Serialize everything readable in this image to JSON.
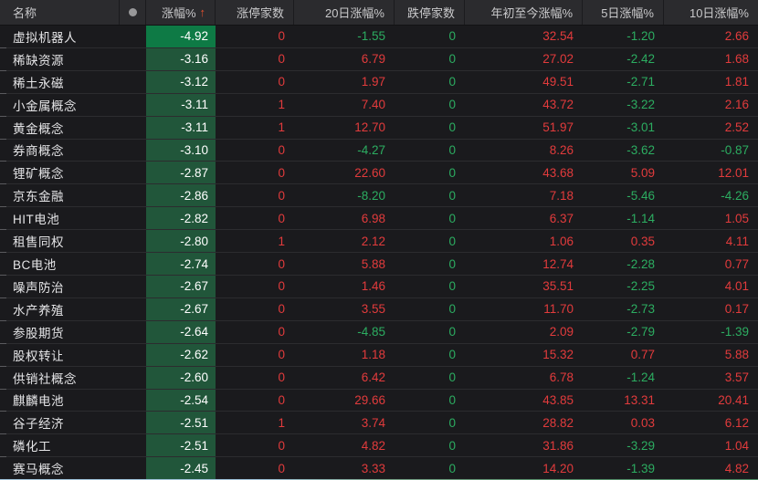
{
  "header": {
    "name": "名称",
    "dot_icon": "record-dot",
    "change": "涨幅%",
    "sort_arrow": "↑",
    "limit_up": "涨停家数",
    "d20": "20日涨幅%",
    "limit_down": "跌停家数",
    "ytd": "年初至今涨幅%",
    "d5": "5日涨幅%",
    "d10": "10日涨幅%"
  },
  "colors": {
    "up_text": "#e23b3c",
    "down_text": "#2cad61",
    "change_cell_bg": "#21563a",
    "change_cell_bg_strong": "#0e7a45",
    "sort_arrow": "#e4502e",
    "background": "#1a1a1d",
    "header_background": "#2b2b2e"
  },
  "rows": [
    {
      "name": "虚拟机器人",
      "pct": "-4.92",
      "limit_up": "0",
      "d20": "-1.55",
      "limit_down": "0",
      "ytd": "32.54",
      "d5": "-1.20",
      "d10": "2.66"
    },
    {
      "name": "稀缺资源",
      "pct": "-3.16",
      "limit_up": "0",
      "d20": "6.79",
      "limit_down": "0",
      "ytd": "27.02",
      "d5": "-2.42",
      "d10": "1.68"
    },
    {
      "name": "稀土永磁",
      "pct": "-3.12",
      "limit_up": "0",
      "d20": "1.97",
      "limit_down": "0",
      "ytd": "49.51",
      "d5": "-2.71",
      "d10": "1.81"
    },
    {
      "name": "小金属概念",
      "pct": "-3.11",
      "limit_up": "1",
      "d20": "7.40",
      "limit_down": "0",
      "ytd": "43.72",
      "d5": "-3.22",
      "d10": "2.16"
    },
    {
      "name": "黄金概念",
      "pct": "-3.11",
      "limit_up": "1",
      "d20": "12.70",
      "limit_down": "0",
      "ytd": "51.97",
      "d5": "-3.01",
      "d10": "2.52"
    },
    {
      "name": "券商概念",
      "pct": "-3.10",
      "limit_up": "0",
      "d20": "-4.27",
      "limit_down": "0",
      "ytd": "8.26",
      "d5": "-3.62",
      "d10": "-0.87"
    },
    {
      "name": "锂矿概念",
      "pct": "-2.87",
      "limit_up": "0",
      "d20": "22.60",
      "limit_down": "0",
      "ytd": "43.68",
      "d5": "5.09",
      "d10": "12.01"
    },
    {
      "name": "京东金融",
      "pct": "-2.86",
      "limit_up": "0",
      "d20": "-8.20",
      "limit_down": "0",
      "ytd": "7.18",
      "d5": "-5.46",
      "d10": "-4.26"
    },
    {
      "name": "HIT电池",
      "pct": "-2.82",
      "limit_up": "0",
      "d20": "6.98",
      "limit_down": "0",
      "ytd": "6.37",
      "d5": "-1.14",
      "d10": "1.05"
    },
    {
      "name": "租售同权",
      "pct": "-2.80",
      "limit_up": "1",
      "d20": "2.12",
      "limit_down": "0",
      "ytd": "1.06",
      "d5": "0.35",
      "d10": "4.11"
    },
    {
      "name": "BC电池",
      "pct": "-2.74",
      "limit_up": "0",
      "d20": "5.88",
      "limit_down": "0",
      "ytd": "12.74",
      "d5": "-2.28",
      "d10": "0.77"
    },
    {
      "name": "噪声防治",
      "pct": "-2.67",
      "limit_up": "0",
      "d20": "1.46",
      "limit_down": "0",
      "ytd": "35.51",
      "d5": "-2.25",
      "d10": "4.01"
    },
    {
      "name": "水产养殖",
      "pct": "-2.67",
      "limit_up": "0",
      "d20": "3.55",
      "limit_down": "0",
      "ytd": "11.70",
      "d5": "-2.73",
      "d10": "0.17"
    },
    {
      "name": "参股期货",
      "pct": "-2.64",
      "limit_up": "0",
      "d20": "-4.85",
      "limit_down": "0",
      "ytd": "2.09",
      "d5": "-2.79",
      "d10": "-1.39"
    },
    {
      "name": "股权转让",
      "pct": "-2.62",
      "limit_up": "0",
      "d20": "1.18",
      "limit_down": "0",
      "ytd": "15.32",
      "d5": "0.77",
      "d10": "5.88"
    },
    {
      "name": "供销社概念",
      "pct": "-2.60",
      "limit_up": "0",
      "d20": "6.42",
      "limit_down": "0",
      "ytd": "6.78",
      "d5": "-1.24",
      "d10": "3.57"
    },
    {
      "name": "麒麟电池",
      "pct": "-2.54",
      "limit_up": "0",
      "d20": "29.66",
      "limit_down": "0",
      "ytd": "43.85",
      "d5": "13.31",
      "d10": "20.41"
    },
    {
      "name": "谷子经济",
      "pct": "-2.51",
      "limit_up": "1",
      "d20": "3.74",
      "limit_down": "0",
      "ytd": "28.82",
      "d5": "0.03",
      "d10": "6.12"
    },
    {
      "name": "磷化工",
      "pct": "-2.51",
      "limit_up": "0",
      "d20": "4.82",
      "limit_down": "0",
      "ytd": "31.86",
      "d5": "-3.29",
      "d10": "1.04"
    },
    {
      "name": "赛马概念",
      "pct": "-2.45",
      "limit_up": "0",
      "d20": "3.33",
      "limit_down": "0",
      "ytd": "14.20",
      "d5": "-1.39",
      "d10": "4.82"
    }
  ]
}
